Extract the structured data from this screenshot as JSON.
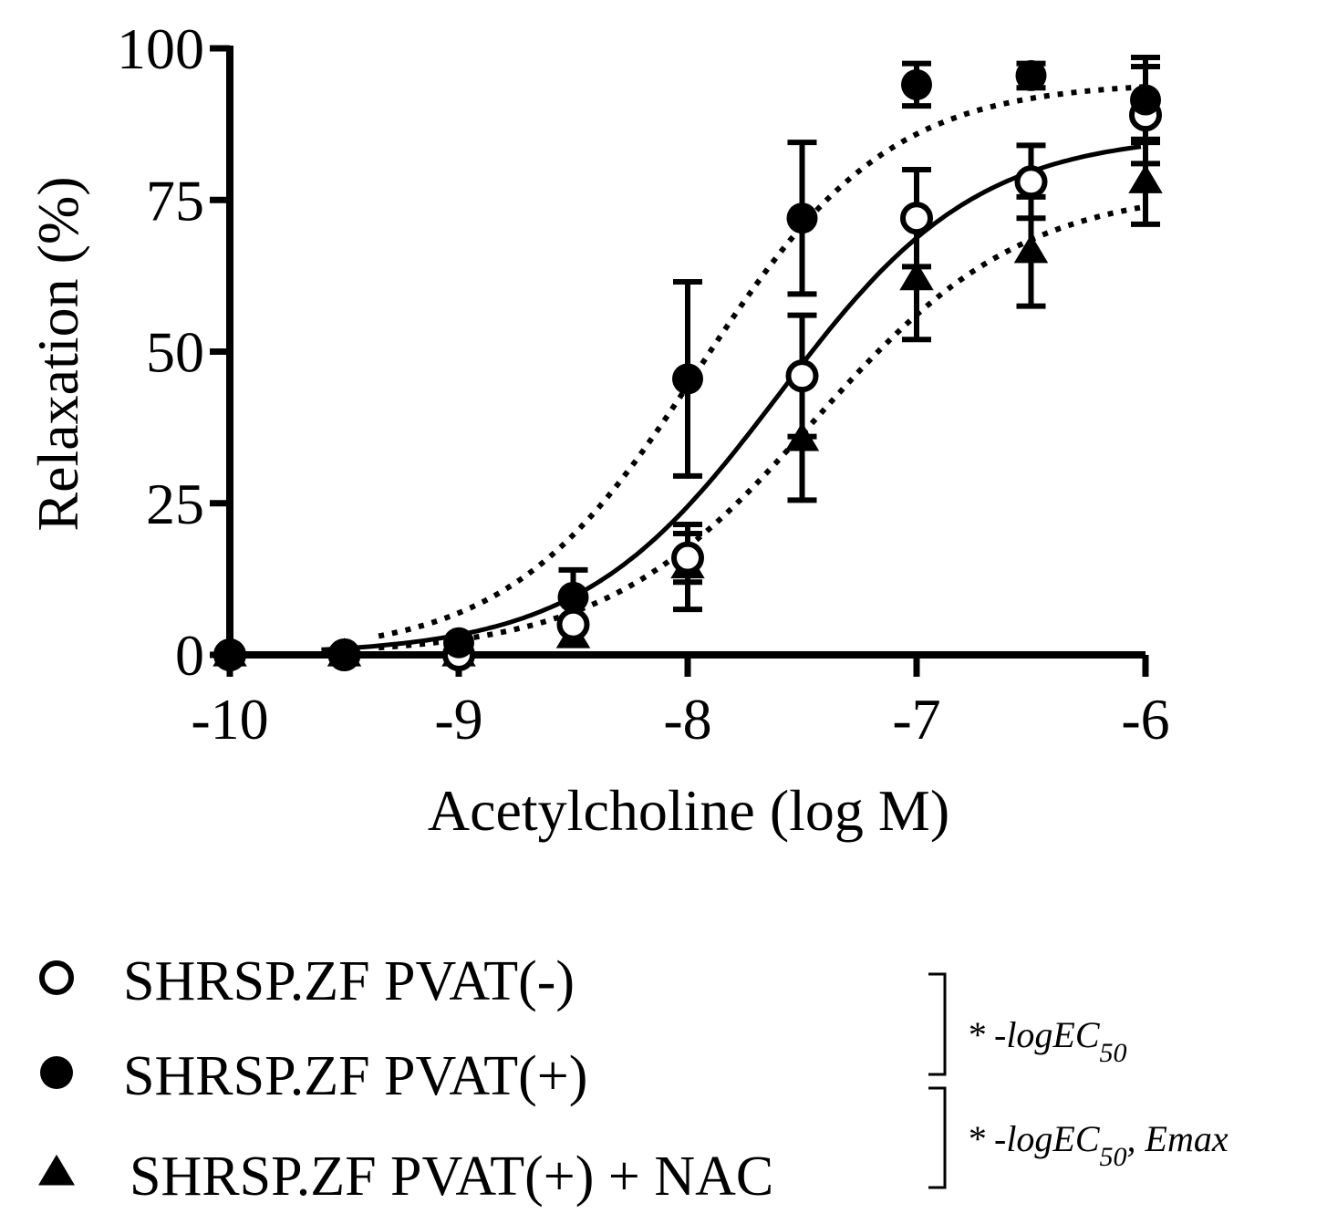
{
  "chart_data": {
    "type": "line",
    "title": "",
    "xlabel": "Acetylcholine (log M)",
    "ylabel": "Relaxation (%)",
    "xlim": [
      -10,
      -6
    ],
    "ylim": [
      0,
      100
    ],
    "xticks": [
      -10,
      -9,
      -8,
      -7,
      -6
    ],
    "xtick_labels": [
      "-10",
      "-9",
      "-8",
      "-7",
      "-6"
    ],
    "yticks": [
      0,
      25,
      50,
      75,
      100
    ],
    "ytick_labels": [
      "0",
      "25",
      "50",
      "75",
      "100"
    ],
    "x": [
      -10,
      -9.5,
      -9,
      -8.5,
      -8,
      -7.5,
      -7,
      -6.5,
      -6
    ],
    "series": [
      {
        "name": "SHRSP.ZF PVAT(-)",
        "marker": "open-circle",
        "line_style": "solid",
        "values": [
          0,
          0,
          0,
          5,
          16,
          46,
          72,
          78,
          89
        ],
        "sem": [
          0,
          0,
          0,
          0,
          4,
          10,
          8,
          6,
          8
        ],
        "fit": {
          "bottom": 0,
          "top": 86,
          "logEC50": -7.6,
          "hill": 1.0
        }
      },
      {
        "name": "SHRSP.ZF PVAT(+)",
        "marker": "filled-circle",
        "line_style": "dotted",
        "values": [
          0,
          0,
          2,
          9.5,
          45.5,
          72,
          94,
          95.5,
          91.5
        ],
        "sem": [
          0,
          0,
          0,
          4.5,
          16,
          12.5,
          3.5,
          2,
          7
        ],
        "fit": {
          "bottom": 0,
          "top": 94.5,
          "logEC50": -7.95,
          "hill": 1.05
        }
      },
      {
        "name": "SHRSP.ZF PVAT(+) + NAC",
        "marker": "filled-triangle",
        "line_style": "dotted",
        "values": [
          0,
          0,
          0,
          3,
          14.5,
          35.5,
          62,
          66.5,
          78
        ],
        "sem": [
          0,
          0,
          0,
          0,
          7,
          10,
          10,
          9,
          7
        ],
        "fit": {
          "bottom": 0,
          "top": 77,
          "logEC50": -7.45,
          "hill": 0.95
        }
      }
    ],
    "legend": {
      "position": "bottom",
      "entries": [
        {
          "label": "SHRSP.ZF PVAT(-)",
          "marker": "open-circle"
        },
        {
          "label": "SHRSP.ZF PVAT(+)",
          "marker": "filled-circle"
        },
        {
          "label": "SHRSP.ZF PVAT(+) + NAC",
          "marker": "filled-triangle"
        }
      ]
    },
    "annotations": [
      {
        "text": "* -logEC",
        "subscript": "50",
        "suffix": ""
      },
      {
        "text": "* -logEC",
        "subscript": "50",
        "suffix": ", Emax"
      }
    ]
  }
}
